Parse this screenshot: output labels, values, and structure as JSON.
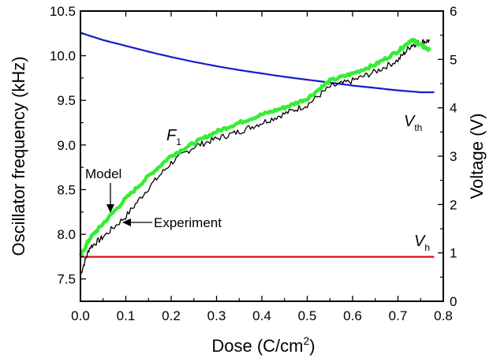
{
  "chart_data": {
    "type": "line",
    "title": "",
    "xlabel": "Dose (C/cm",
    "xlabel_sup": "2",
    "xlabel_end": ")",
    "ylabel_left": "Oscillator frequency (kHz)",
    "ylabel_right": "Voltage (V)",
    "xlim": [
      0.0,
      0.8
    ],
    "ylim_left": [
      7.25,
      10.5
    ],
    "ylim_right": [
      0,
      6
    ],
    "x_ticks": [
      "0.0",
      "0.1",
      "0.2",
      "0.3",
      "0.4",
      "0.5",
      "0.6",
      "0.7",
      "0.8"
    ],
    "y_left_ticks": [
      "7.5",
      "8.0",
      "8.5",
      "9.0",
      "9.5",
      "10.0",
      "10.5"
    ],
    "y_right_ticks": [
      "0",
      "1",
      "2",
      "3",
      "4",
      "5",
      "6"
    ],
    "grid": false,
    "series": [
      {
        "name": "Experiment",
        "axis": "left",
        "color": "#000000",
        "noise": 0.035,
        "x": [
          0.0,
          0.02,
          0.05,
          0.1,
          0.15,
          0.2,
          0.25,
          0.3,
          0.35,
          0.4,
          0.45,
          0.5,
          0.55,
          0.6,
          0.65,
          0.7,
          0.73,
          0.75,
          0.77
        ],
        "y": [
          7.55,
          7.85,
          7.97,
          8.2,
          8.52,
          8.8,
          8.98,
          9.07,
          9.15,
          9.25,
          9.35,
          9.45,
          9.65,
          9.72,
          9.82,
          9.95,
          10.12,
          10.15,
          10.17
        ]
      },
      {
        "name": "Model",
        "axis": "left",
        "color": "#33ee33",
        "noise": 0.018,
        "x": [
          0.0,
          0.02,
          0.05,
          0.1,
          0.15,
          0.2,
          0.25,
          0.3,
          0.35,
          0.4,
          0.45,
          0.5,
          0.55,
          0.6,
          0.65,
          0.7,
          0.73,
          0.75,
          0.77
        ],
        "y": [
          7.75,
          7.95,
          8.12,
          8.4,
          8.65,
          8.88,
          9.02,
          9.15,
          9.25,
          9.34,
          9.42,
          9.52,
          9.72,
          9.8,
          9.9,
          10.05,
          10.18,
          10.12,
          10.06
        ]
      },
      {
        "name": "V",
        "name_sub": "th",
        "axis": "right",
        "color": "#1a1acc",
        "noise": 0,
        "x": [
          0.0,
          0.05,
          0.1,
          0.15,
          0.2,
          0.25,
          0.3,
          0.35,
          0.4,
          0.45,
          0.5,
          0.55,
          0.6,
          0.65,
          0.7,
          0.75,
          0.78
        ],
        "y": [
          5.55,
          5.4,
          5.28,
          5.16,
          5.05,
          4.95,
          4.86,
          4.78,
          4.71,
          4.64,
          4.58,
          4.52,
          4.46,
          4.41,
          4.36,
          4.32,
          4.32
        ]
      },
      {
        "name": "V",
        "name_sub": "h",
        "axis": "right",
        "color": "#dd1111",
        "noise": 0,
        "x": [
          0.0,
          0.78
        ],
        "y": [
          0.92,
          0.92
        ]
      }
    ],
    "annotations": [
      {
        "key": "model",
        "text": "Model"
      },
      {
        "key": "experiment",
        "text": "Experiment"
      },
      {
        "key": "f1",
        "text": "F",
        "sub": "1"
      },
      {
        "key": "vth",
        "text": "V",
        "sub": "th"
      },
      {
        "key": "vh",
        "text": "V",
        "sub": "h"
      }
    ]
  }
}
